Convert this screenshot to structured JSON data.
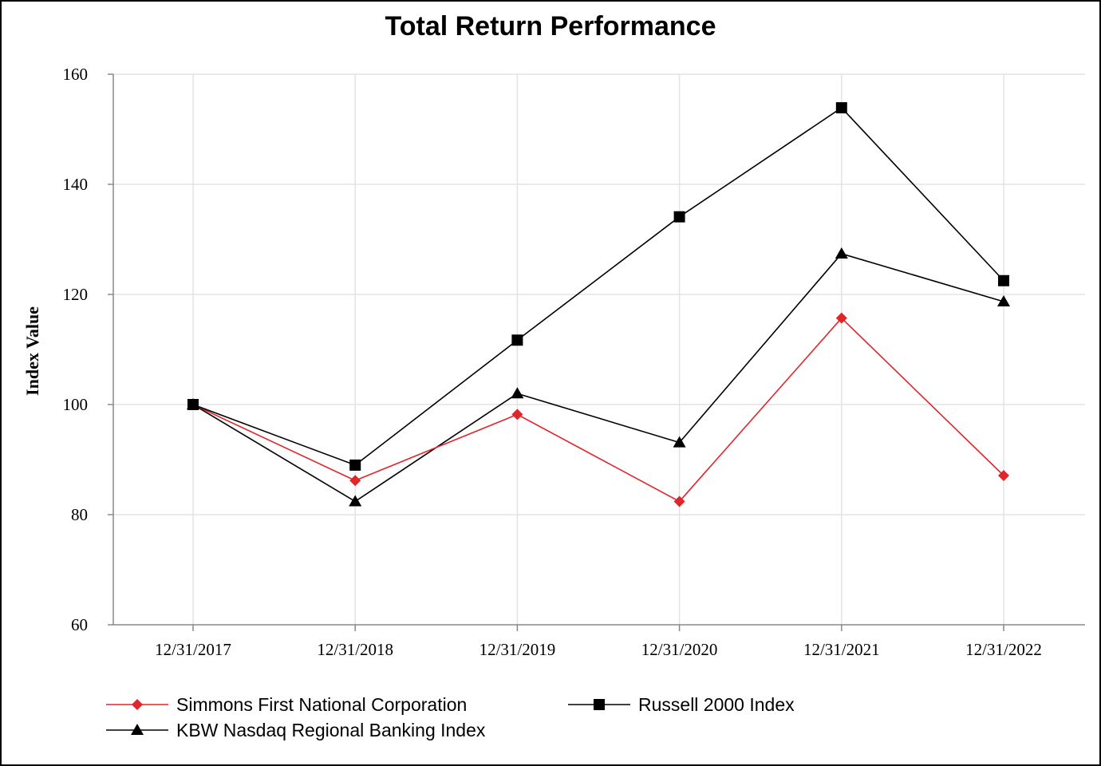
{
  "chart_data": {
    "type": "line",
    "title": "Total Return Performance",
    "xlabel": "",
    "ylabel": "Index Value",
    "categories": [
      "12/31/2017",
      "12/31/2018",
      "12/31/2019",
      "12/31/2020",
      "12/31/2021",
      "12/31/2022"
    ],
    "ylim": [
      60,
      160
    ],
    "yticks": [
      60,
      80,
      100,
      120,
      140,
      160
    ],
    "grid": true,
    "legend_position": "bottom",
    "series": [
      {
        "name": "Simmons First National Corporation",
        "color": "#e0262b",
        "marker": "diamond",
        "values": [
          100.0,
          86.2,
          98.2,
          82.4,
          115.7,
          87.1
        ]
      },
      {
        "name": "Russell 2000 Index",
        "color": "#000000",
        "marker": "square",
        "values": [
          100.0,
          89.0,
          111.7,
          134.1,
          153.9,
          122.5
        ]
      },
      {
        "name": "KBW Nasdaq Regional Banking Index",
        "color": "#000000",
        "marker": "triangle",
        "values": [
          100.0,
          82.4,
          102.0,
          93.1,
          127.4,
          118.7
        ]
      }
    ]
  }
}
